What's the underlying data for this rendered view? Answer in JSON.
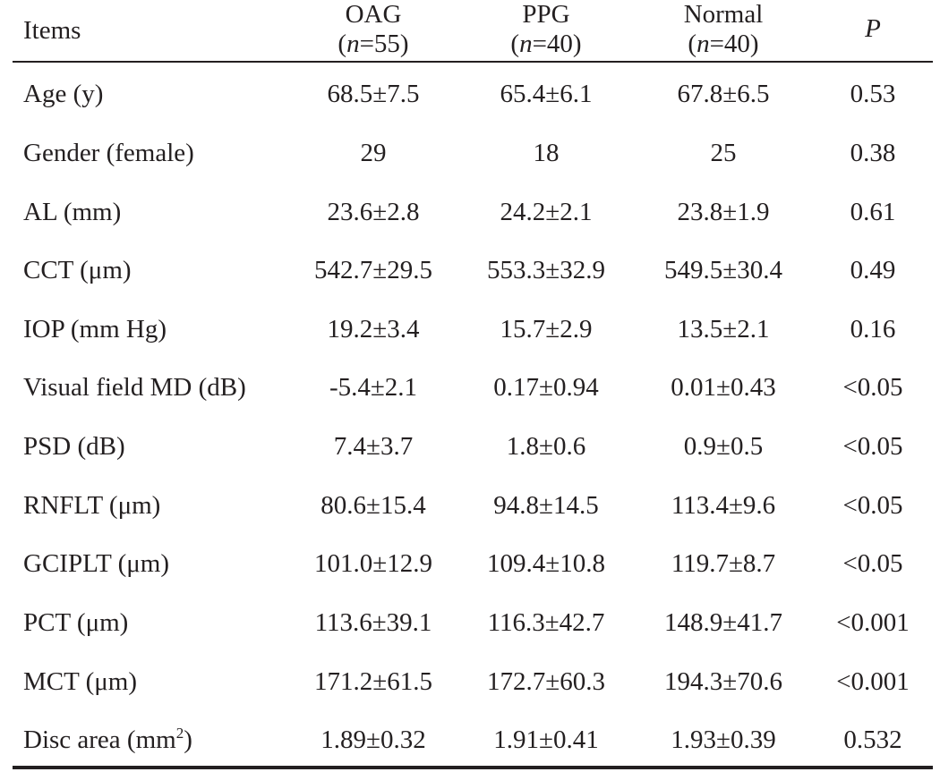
{
  "header": {
    "items": "Items",
    "groups": [
      {
        "name": "OAG",
        "n_prefix": "(",
        "n_label": "n",
        "n_suffix": "=55)"
      },
      {
        "name": "PPG",
        "n_prefix": "(",
        "n_label": "n",
        "n_suffix": "=40)"
      },
      {
        "name": "Normal",
        "n_prefix": "(",
        "n_label": "n",
        "n_suffix": "=40)"
      }
    ],
    "p": "P"
  },
  "rows": [
    {
      "label": "Age (y)",
      "oag": "68.5±7.5",
      "ppg": "65.4±6.1",
      "normal": "67.8±6.5",
      "p": "0.53"
    },
    {
      "label": "Gender (female)",
      "oag": "29",
      "ppg": "18",
      "normal": "25",
      "p": "0.38"
    },
    {
      "label": "AL (mm)",
      "oag": "23.6±2.8",
      "ppg": "24.2±2.1",
      "normal": "23.8±1.9",
      "p": "0.61"
    },
    {
      "label": "CCT (μm)",
      "oag": "542.7±29.5",
      "ppg": "553.3±32.9",
      "normal": "549.5±30.4",
      "p": "0.49"
    },
    {
      "label": "IOP (mm Hg)",
      "oag": "19.2±3.4",
      "ppg": "15.7±2.9",
      "normal": "13.5±2.1",
      "p": "0.16"
    },
    {
      "label": "Visual field MD (dB)",
      "oag": "-5.4±2.1",
      "ppg": "0.17±0.94",
      "normal": "0.01±0.43",
      "p": "<0.05"
    },
    {
      "label": "PSD (dB)",
      "oag": "7.4±3.7",
      "ppg": "1.8±0.6",
      "normal": "0.9±0.5",
      "p": "<0.05"
    },
    {
      "label": "RNFLT (μm)",
      "oag": "80.6±15.4",
      "ppg": "94.8±14.5",
      "normal": "113.4±9.6",
      "p": "<0.05"
    },
    {
      "label": "GCIPLT (μm)",
      "oag": "101.0±12.9",
      "ppg": "109.4±10.8",
      "normal": "119.7±8.7",
      "p": "<0.05"
    },
    {
      "label": "PCT (μm)",
      "oag": "113.6±39.1",
      "ppg": "116.3±42.7",
      "normal": "148.9±41.7",
      "p": "<0.001"
    },
    {
      "label": "MCT (μm)",
      "oag": "171.2±61.5",
      "ppg": "172.7±60.3",
      "normal": "194.3±70.6",
      "p": "<0.001"
    },
    {
      "label": "Disc area (mm",
      "label_sup": "2",
      "label_suffix": ")",
      "oag": "1.89±0.32",
      "ppg": "1.91±0.41",
      "normal": "1.93±0.39",
      "p": "0.532"
    }
  ]
}
